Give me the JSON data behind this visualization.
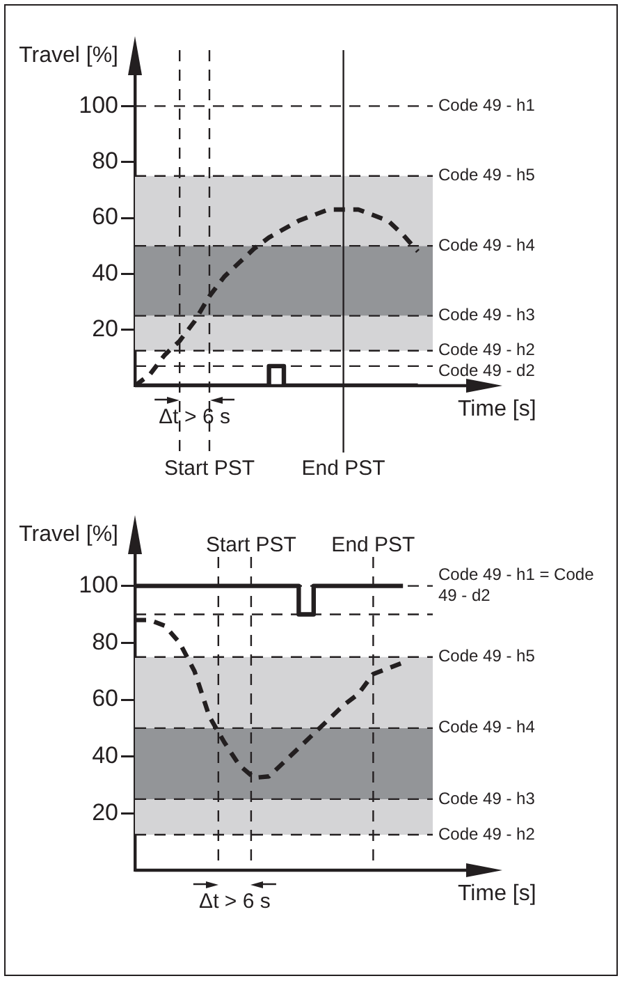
{
  "chart_data": [
    {
      "type": "line",
      "ylabel": "Travel [%]",
      "xlabel": "Time [s]",
      "categories": [
        null,
        null,
        null,
        null,
        null,
        null,
        null,
        null,
        null,
        null,
        null,
        null,
        null,
        null,
        null,
        null,
        null,
        null,
        null,
        null,
        null
      ],
      "ylim": [
        0,
        120
      ],
      "yticks": [
        20,
        40,
        60,
        80,
        100
      ],
      "tick_labels": "y",
      "legend": false,
      "marker": "none",
      "series": [
        {
          "line_style": "dashed",
          "color": "#231f20",
          "values": [
            0,
            4,
            11,
            16,
            23,
            32,
            39,
            44,
            49,
            53,
            56,
            59,
            61,
            63,
            63,
            63,
            61,
            59,
            54,
            48,
            null
          ]
        },
        {
          "type": "step",
          "line_style": "solid",
          "color": "#231f20",
          "values": [
            0,
            0,
            0,
            0,
            0,
            0,
            0,
            0,
            0,
            7,
            0,
            0,
            0,
            0,
            0,
            0,
            0,
            0,
            0,
            0,
            null
          ]
        }
      ],
      "bands": [
        {
          "axis": "y",
          "from": 12.5,
          "to": 25,
          "color": "#d4d4d6"
        },
        {
          "axis": "y",
          "from": 25,
          "to": 50,
          "color": "#939598"
        },
        {
          "axis": "y",
          "from": 50,
          "to": 75,
          "color": "#d4d4d6"
        }
      ],
      "ref_lines": [
        {
          "axis": "y",
          "value": 100,
          "label": "Code 49 - h1",
          "line_style": "dashed"
        },
        {
          "axis": "y",
          "value": 75,
          "label": "Code 49 - h5",
          "line_style": "dashed"
        },
        {
          "axis": "y",
          "value": 50,
          "label": "Code 49 - h4",
          "line_style": "dashed"
        },
        {
          "axis": "y",
          "value": 25,
          "label": "Code 49 - h3",
          "line_style": "dashed"
        },
        {
          "axis": "y",
          "value": 12.5,
          "label": "Code 49 - h2",
          "line_style": "dashed"
        },
        {
          "axis": "y",
          "value": 7,
          "label": "Code 49 - d2",
          "line_style": "dashed"
        }
      ],
      "annotations": [
        "Δt > 6 s",
        "Start PST",
        "End PST"
      ]
    },
    {
      "type": "line",
      "ylabel": "Travel [%]",
      "xlabel": "Time [s]",
      "categories": [
        null,
        null,
        null,
        null,
        null,
        null,
        null,
        null,
        null,
        null,
        null,
        null,
        null,
        null,
        null,
        null,
        null,
        null,
        null,
        null,
        null
      ],
      "ylim": [
        0,
        120
      ],
      "yticks": [
        20,
        40,
        60,
        80,
        100
      ],
      "tick_labels": "y",
      "legend": false,
      "marker": "none",
      "series": [
        {
          "line_style": "dashed",
          "color": "#231f20",
          "values": [
            88,
            88,
            86,
            80,
            70,
            54,
            45,
            37,
            32.5,
            33,
            38,
            43,
            48,
            53,
            58,
            62,
            69,
            71,
            73,
            null,
            null
          ]
        },
        {
          "type": "step",
          "line_style": "solid",
          "color": "#231f20",
          "values": [
            100,
            100,
            100,
            100,
            100,
            100,
            100,
            100,
            100,
            100,
            100,
            90,
            100,
            100,
            100,
            100,
            100,
            100,
            100,
            null,
            null
          ]
        }
      ],
      "bands": [
        {
          "axis": "y",
          "from": 12.5,
          "to": 25,
          "color": "#d4d4d6"
        },
        {
          "axis": "y",
          "from": 25,
          "to": 50,
          "color": "#939598"
        },
        {
          "axis": "y",
          "from": 50,
          "to": 75,
          "color": "#d4d4d6"
        }
      ],
      "ref_lines": [
        {
          "axis": "y",
          "value": 100,
          "label": "Code 49 - h1 = Code 49 - d2",
          "line_style": "dashed"
        },
        {
          "axis": "y",
          "value": 90,
          "line_style": "dashed"
        },
        {
          "axis": "y",
          "value": 75,
          "label": "Code 49 - h5",
          "line_style": "dashed"
        },
        {
          "axis": "y",
          "value": 50,
          "label": "Code 49 - h4",
          "line_style": "dashed"
        },
        {
          "axis": "y",
          "value": 25,
          "label": "Code 49 - h3",
          "line_style": "dashed"
        },
        {
          "axis": "y",
          "value": 12.5,
          "label": "Code 49 - h2",
          "line_style": "dashed"
        }
      ],
      "annotations": [
        "Δt > 6 s",
        "Start PST",
        "End PST"
      ]
    }
  ]
}
